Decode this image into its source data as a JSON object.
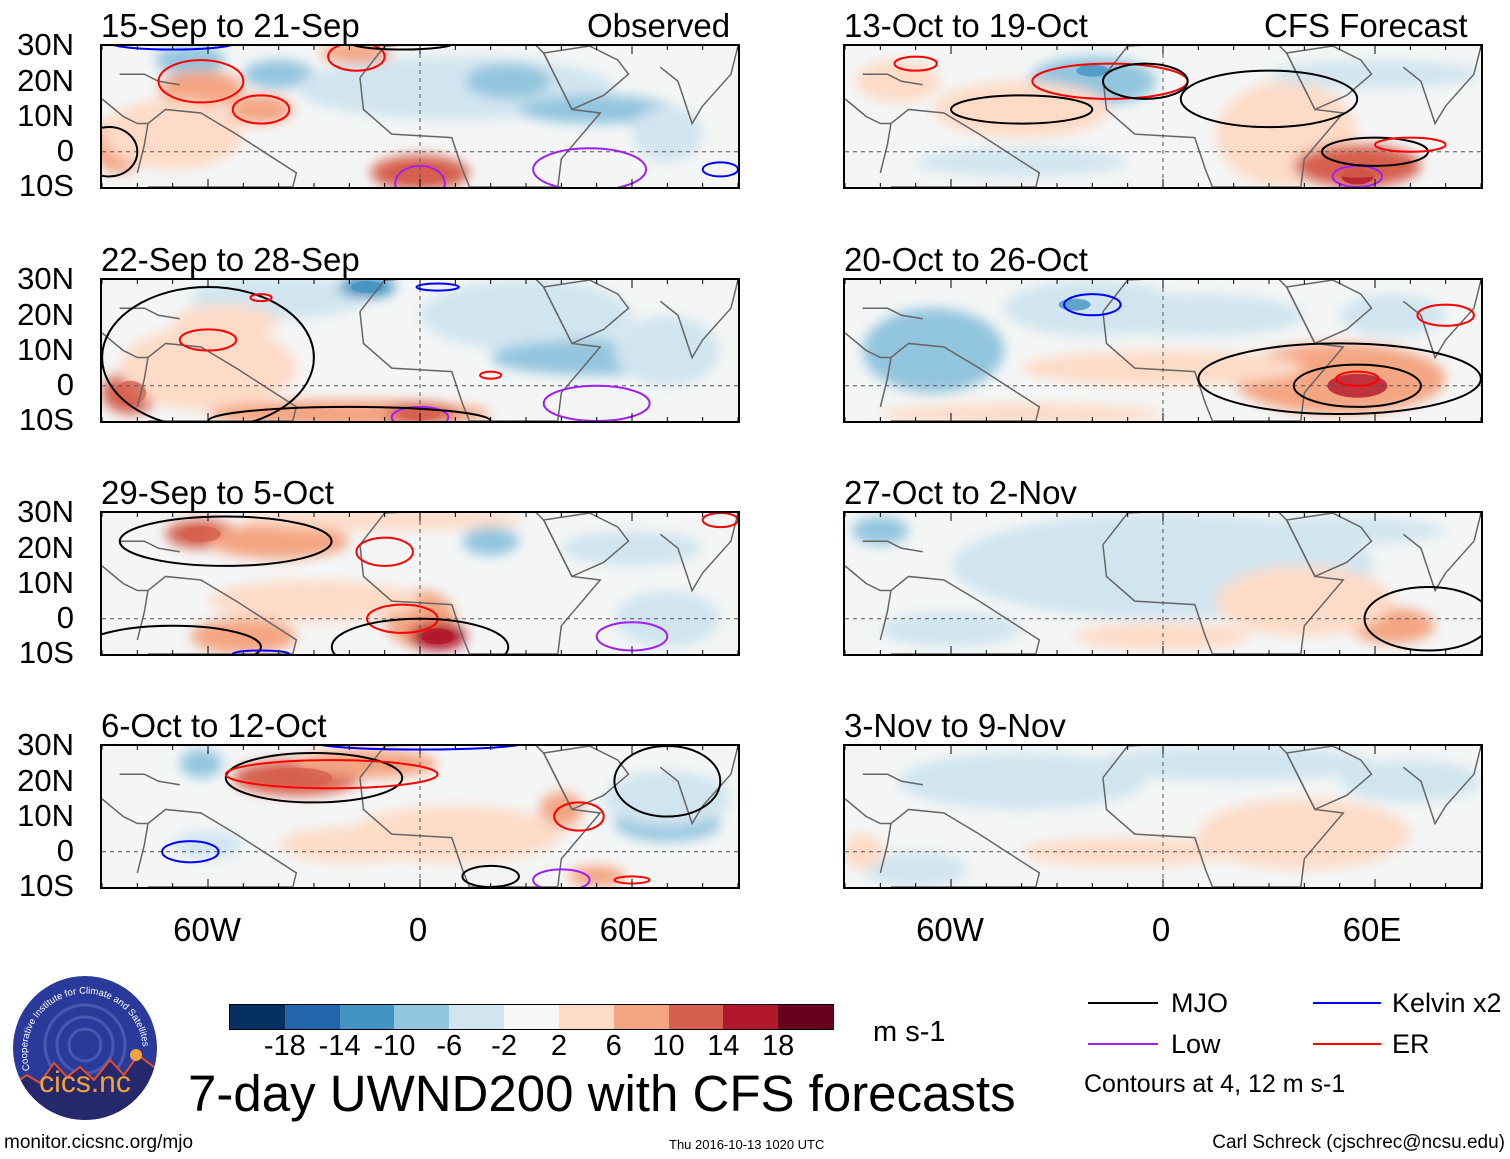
{
  "figure": {
    "title": "7-day UWND200 with CFS forecasts",
    "units": "m s-1",
    "url": "monitor.cicsnc.org/mjo",
    "timestamp": "Thu 2016-10-13 1020 UTC",
    "author": "Carl Schreck (cjschrec@ncsu.edu)",
    "logo_text": "cics.nc",
    "logo_ring_text": "Cooperative Institute for Climate and Satellites"
  },
  "columns": {
    "left_label": "Observed",
    "right_label": "CFS Forecast"
  },
  "panels_left": [
    {
      "title": "15-Sep to 21-Sep"
    },
    {
      "title": "22-Sep to 28-Sep"
    },
    {
      "title": "29-Sep to 5-Oct"
    },
    {
      "title": "6-Oct to 12-Oct"
    }
  ],
  "panels_right": [
    {
      "title": "13-Oct to 19-Oct"
    },
    {
      "title": "20-Oct to 26-Oct"
    },
    {
      "title": "27-Oct to 2-Nov"
    },
    {
      "title": "3-Nov to 9-Nov"
    }
  ],
  "lat_labels": [
    "30N",
    "20N",
    "10N",
    "0",
    "10S"
  ],
  "lon_labels": [
    "60W",
    "0",
    "60E"
  ],
  "colorbar": {
    "labels": [
      "-18",
      "-14",
      "-10",
      "-6",
      "-2",
      "2",
      "6",
      "10",
      "14",
      "18"
    ],
    "colors": [
      "#053061",
      "#2166ac",
      "#4393c3",
      "#92c5de",
      "#d1e5f0",
      "#f7f7f7",
      "#fddbc7",
      "#f4a582",
      "#d6604d",
      "#b2182b",
      "#67001f"
    ]
  },
  "legend": {
    "items": [
      {
        "label": "MJO",
        "color": "#000000"
      },
      {
        "label": "Kelvin x2",
        "color": "#0000ff"
      },
      {
        "label": "Low",
        "color": "#a020f0"
      },
      {
        "label": "ER",
        "color": "#ff0000"
      }
    ],
    "contours_note": "Contours at 4, 12 m s-1"
  },
  "chart_data": {
    "type": "heatmap",
    "title": "7-day UWND200 with CFS forecasts",
    "variable": "200-hPa zonal wind anomaly",
    "units": "m s-1",
    "levels": [
      -18,
      -14,
      -10,
      -6,
      -2,
      2,
      6,
      10,
      14,
      18
    ],
    "lat_range": [
      -10,
      30
    ],
    "lon_range": [
      -90,
      90
    ],
    "contour_levels": [
      4,
      12
    ]
  }
}
